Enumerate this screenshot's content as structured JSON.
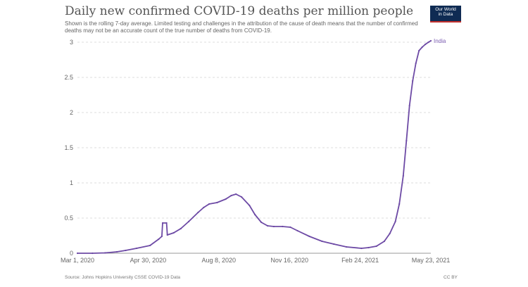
{
  "header": {
    "title": "Daily new confirmed COVID-19 deaths per million people",
    "subtitle": "Shown is the rolling 7-day average. Limited testing and challenges in the attribution of the cause of death means that the number of confirmed deaths may not be an accurate count of the true number of deaths from COVID-19."
  },
  "logo": {
    "line1": "Our World",
    "line2": "in Data",
    "background": "#0f2b53",
    "accent": "#c3302e"
  },
  "footer": {
    "source": "Source: Johns Hopkins University CSSE COVID-19 Data",
    "license": "CC BY"
  },
  "chart_data": {
    "type": "line",
    "title": "Daily new confirmed COVID-19 deaths per million people",
    "xlabel": "",
    "ylabel": "",
    "x_range": [
      "2020-03-01",
      "2021-05-23"
    ],
    "ylim": [
      0,
      3
    ],
    "y_ticks": [
      "0",
      "0.5",
      "1",
      "1.5",
      "2",
      "2.5",
      "3"
    ],
    "x_ticks": [
      "Mar 1, 2020",
      "Apr 30, 2020",
      "Aug 8, 2020",
      "Nov 16, 2020",
      "Feb 24, 2021",
      "May 23, 2021"
    ],
    "grid": "horizontal-dashed",
    "series": [
      {
        "name": "India",
        "color": "#6d4aa5",
        "points": [
          [
            "2020-03-01",
            0.0
          ],
          [
            "2020-03-20",
            0.0
          ],
          [
            "2020-04-05",
            0.005
          ],
          [
            "2020-04-20",
            0.02
          ],
          [
            "2020-05-01",
            0.04
          ],
          [
            "2020-05-15",
            0.07
          ],
          [
            "2020-06-01",
            0.11
          ],
          [
            "2020-06-12",
            0.2
          ],
          [
            "2020-06-16",
            0.24
          ],
          [
            "2020-06-17",
            0.43
          ],
          [
            "2020-06-22",
            0.43
          ],
          [
            "2020-06-23",
            0.26
          ],
          [
            "2020-07-01",
            0.29
          ],
          [
            "2020-07-10",
            0.35
          ],
          [
            "2020-07-20",
            0.45
          ],
          [
            "2020-08-01",
            0.58
          ],
          [
            "2020-08-08",
            0.65
          ],
          [
            "2020-08-15",
            0.7
          ],
          [
            "2020-08-25",
            0.72
          ],
          [
            "2020-09-05",
            0.77
          ],
          [
            "2020-09-12",
            0.82
          ],
          [
            "2020-09-18",
            0.84
          ],
          [
            "2020-09-25",
            0.8
          ],
          [
            "2020-10-05",
            0.68
          ],
          [
            "2020-10-12",
            0.55
          ],
          [
            "2020-10-20",
            0.44
          ],
          [
            "2020-10-28",
            0.39
          ],
          [
            "2020-11-05",
            0.38
          ],
          [
            "2020-11-16",
            0.38
          ],
          [
            "2020-11-26",
            0.37
          ],
          [
            "2020-12-05",
            0.32
          ],
          [
            "2020-12-20",
            0.24
          ],
          [
            "2021-01-05",
            0.17
          ],
          [
            "2021-01-20",
            0.13
          ],
          [
            "2021-02-05",
            0.09
          ],
          [
            "2021-02-24",
            0.07
          ],
          [
            "2021-03-05",
            0.08
          ],
          [
            "2021-03-15",
            0.1
          ],
          [
            "2021-03-25",
            0.17
          ],
          [
            "2021-04-01",
            0.28
          ],
          [
            "2021-04-08",
            0.45
          ],
          [
            "2021-04-13",
            0.7
          ],
          [
            "2021-04-18",
            1.1
          ],
          [
            "2021-04-22",
            1.6
          ],
          [
            "2021-04-26",
            2.1
          ],
          [
            "2021-04-30",
            2.45
          ],
          [
            "2021-05-04",
            2.7
          ],
          [
            "2021-05-08",
            2.88
          ],
          [
            "2021-05-12",
            2.93
          ],
          [
            "2021-05-16",
            2.97
          ],
          [
            "2021-05-20",
            3.0
          ],
          [
            "2021-05-23",
            3.02
          ]
        ]
      }
    ]
  }
}
